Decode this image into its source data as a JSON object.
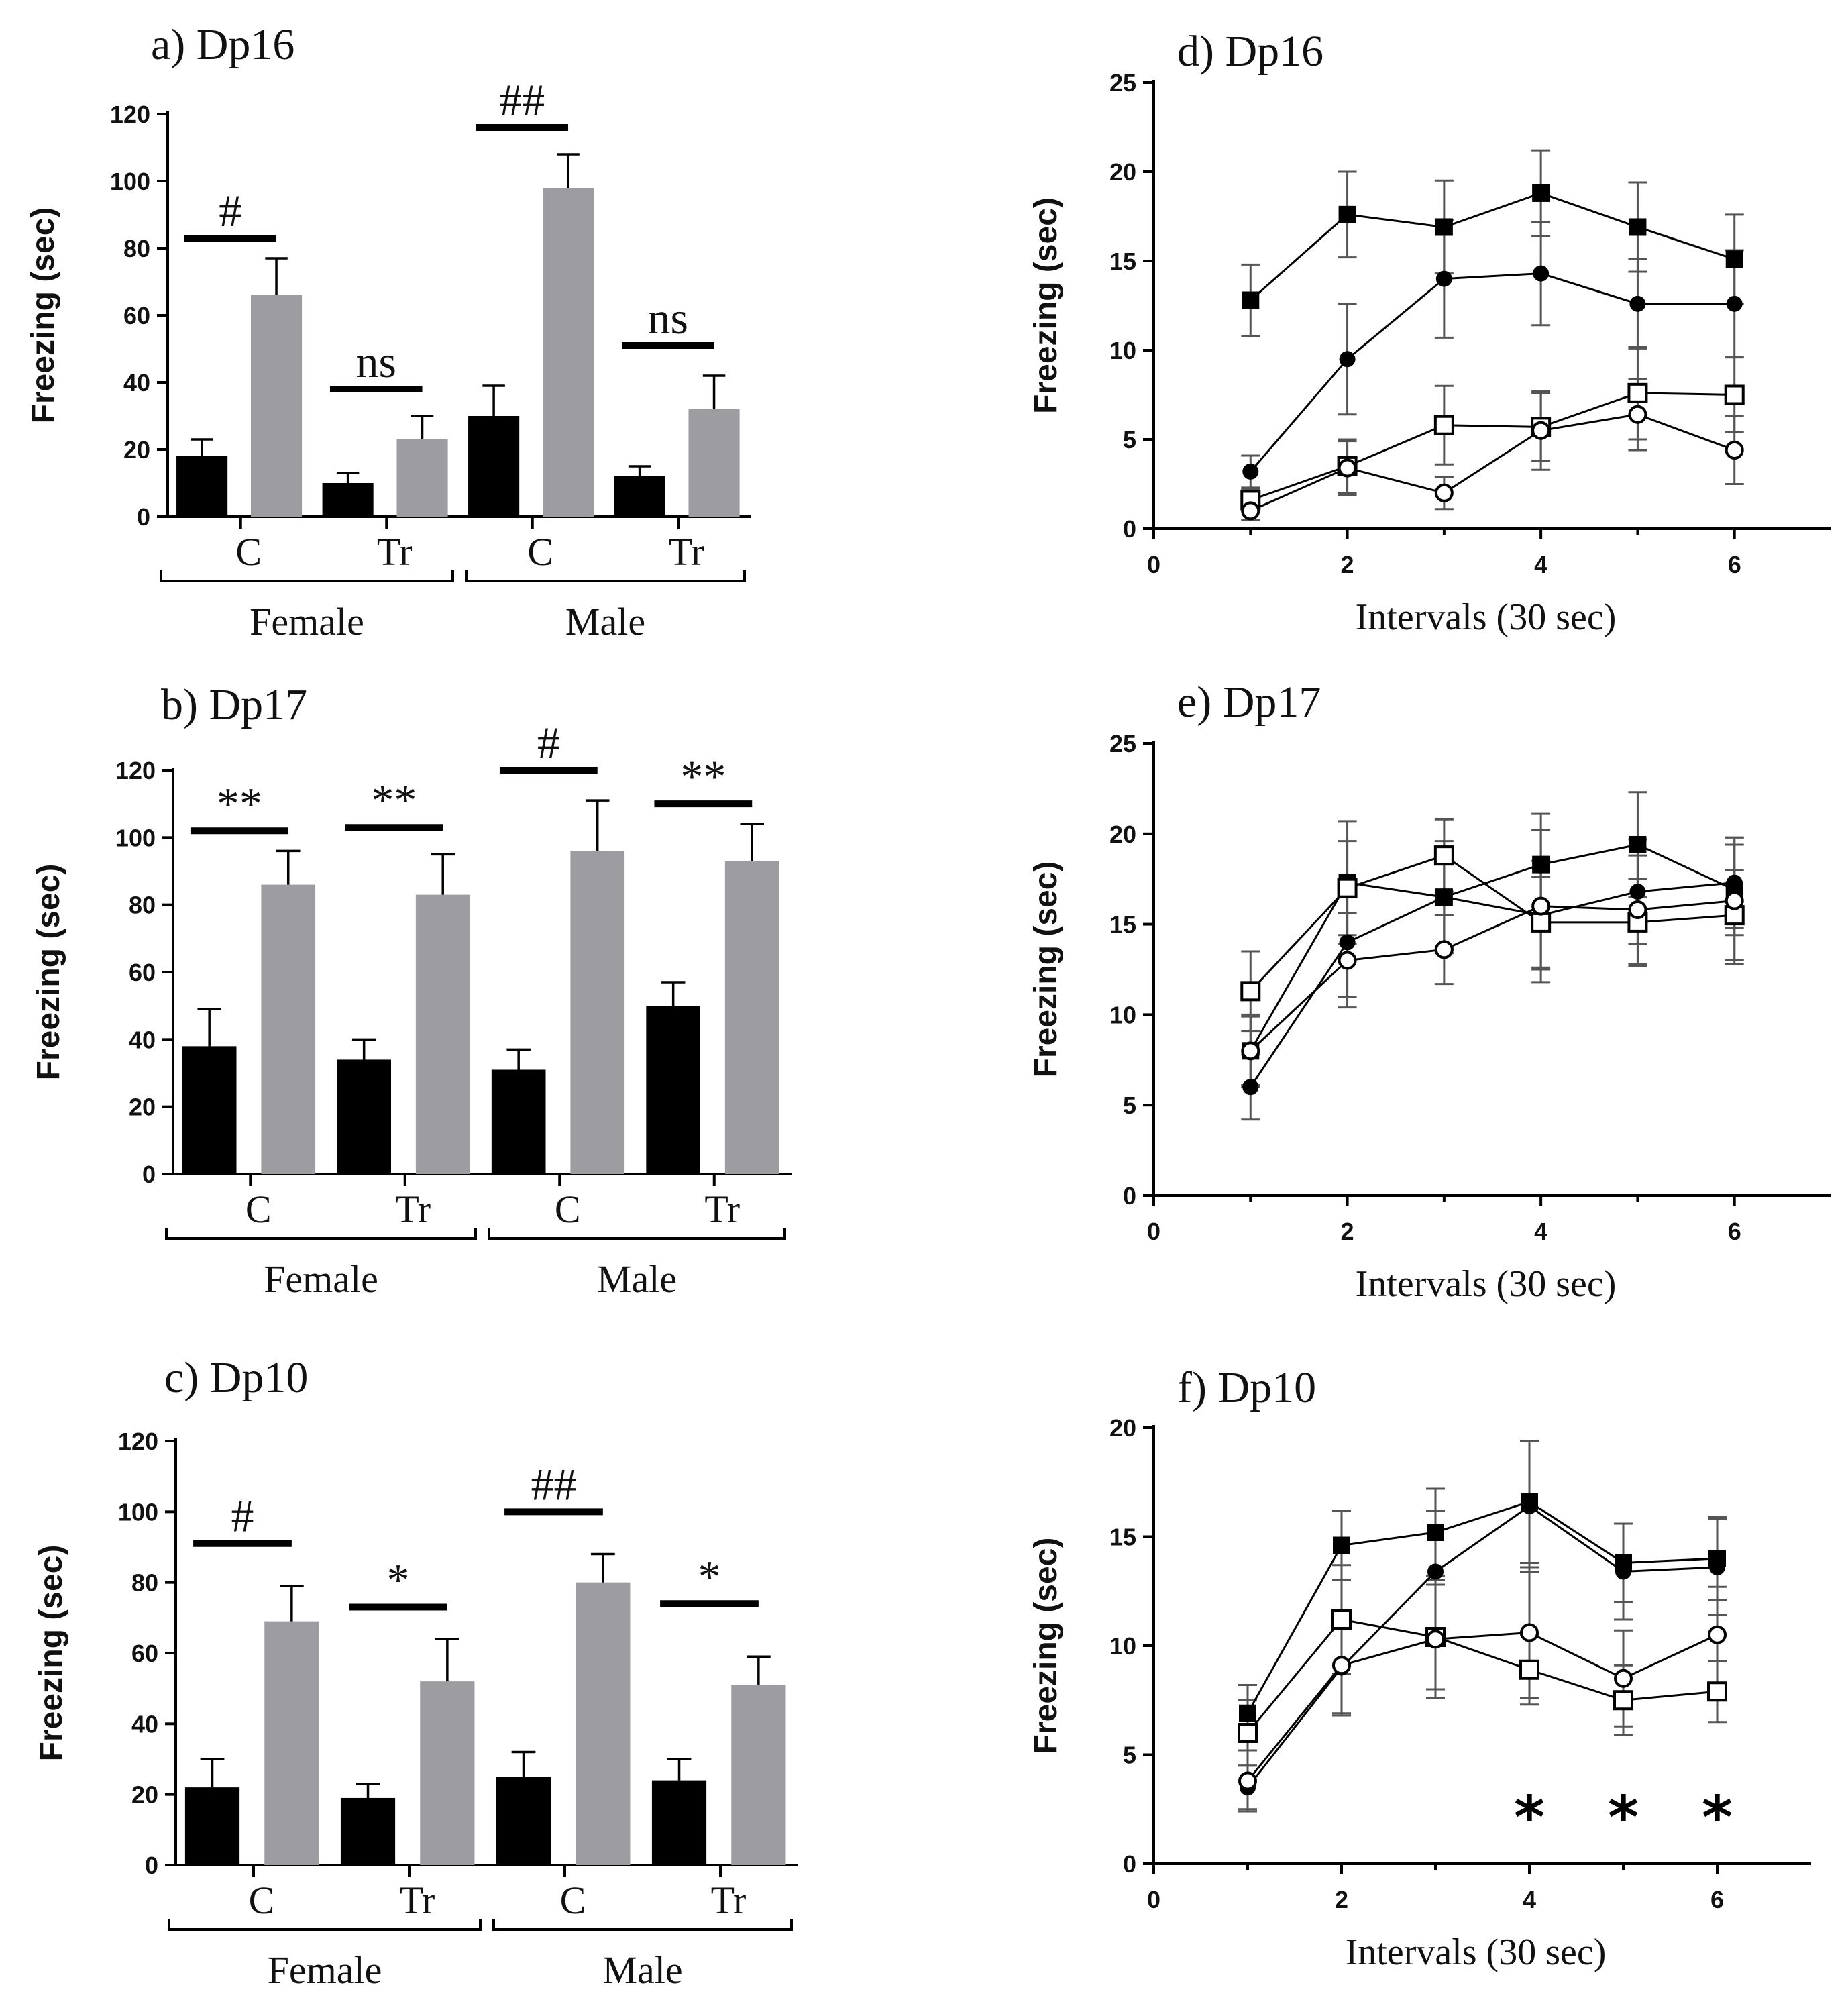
{
  "figure": {
    "colors": {
      "black": "#000000",
      "gray": "#9c9ca1"
    },
    "bar_groups": [
      "C",
      "Tr",
      "C",
      "Tr"
    ],
    "sexes": [
      "Female",
      "Male"
    ]
  },
  "chart_data": [
    {
      "id": "a",
      "type": "bar",
      "title": "a) Dp16",
      "ylabel": "Freezing (sec)",
      "ylim": [
        0,
        120
      ],
      "yticks": [
        0,
        20,
        40,
        60,
        80,
        100,
        120
      ],
      "categories": [
        "C",
        "Tr",
        "C",
        "Tr"
      ],
      "sex_labels": [
        "Female",
        "Male"
      ],
      "series": [
        {
          "name": "black",
          "values": [
            18,
            10,
            30,
            12
          ],
          "errors": [
            5,
            3,
            9,
            3
          ]
        },
        {
          "name": "gray",
          "values": [
            66,
            23,
            98,
            32
          ],
          "errors": [
            11,
            7,
            10,
            10
          ]
        }
      ],
      "annotations": [
        {
          "group": 0,
          "text": "#",
          "level": 83
        },
        {
          "group": 1,
          "text": "ns",
          "level": 38
        },
        {
          "group": 2,
          "text": "##",
          "level": 116
        },
        {
          "group": 3,
          "text": "ns",
          "level": 51
        }
      ]
    },
    {
      "id": "b",
      "type": "bar",
      "title": "b) Dp17",
      "ylabel": "Freezing (sec)",
      "ylim": [
        0,
        120
      ],
      "yticks": [
        0,
        20,
        40,
        60,
        80,
        100,
        120
      ],
      "categories": [
        "C",
        "Tr",
        "C",
        "Tr"
      ],
      "sex_labels": [
        "Female",
        "Male"
      ],
      "series": [
        {
          "name": "black",
          "values": [
            38,
            34,
            31,
            50
          ],
          "errors": [
            11,
            6,
            6,
            7
          ]
        },
        {
          "name": "gray",
          "values": [
            86,
            83,
            96,
            93
          ],
          "errors": [
            10,
            12,
            15,
            11
          ]
        }
      ],
      "annotations": [
        {
          "group": 0,
          "text": "**",
          "level": 102
        },
        {
          "group": 1,
          "text": "**",
          "level": 103
        },
        {
          "group": 2,
          "text": "#",
          "level": 120
        },
        {
          "group": 3,
          "text": "**",
          "level": 110
        }
      ]
    },
    {
      "id": "c",
      "type": "bar",
      "title": "c) Dp10",
      "ylabel": "Freezing (sec)",
      "ylim": [
        0,
        120
      ],
      "yticks": [
        0,
        20,
        40,
        60,
        80,
        100,
        120
      ],
      "categories": [
        "C",
        "Tr",
        "C",
        "Tr"
      ],
      "sex_labels": [
        "Female",
        "Male"
      ],
      "series": [
        {
          "name": "black",
          "values": [
            22,
            19,
            25,
            24
          ],
          "errors": [
            8,
            4,
            7,
            6
          ]
        },
        {
          "name": "gray",
          "values": [
            69,
            52,
            80,
            51
          ],
          "errors": [
            10,
            12,
            8,
            8
          ]
        }
      ],
      "annotations": [
        {
          "group": 0,
          "text": "#",
          "level": 91
        },
        {
          "group": 1,
          "text": "*",
          "level": 73
        },
        {
          "group": 2,
          "text": "##",
          "level": 100
        },
        {
          "group": 3,
          "text": "*",
          "level": 74
        }
      ]
    },
    {
      "id": "d",
      "type": "line",
      "title": "d) Dp16",
      "ylabel": "Freezing (sec)",
      "xlabel": "Intervals (30 sec)",
      "xlim": [
        0,
        7
      ],
      "xticks": [
        0,
        2,
        4,
        6
      ],
      "ylim": [
        0,
        25
      ],
      "yticks": [
        0,
        5,
        10,
        15,
        20,
        25
      ],
      "x": [
        1,
        2,
        3,
        4,
        5,
        6
      ],
      "series": [
        {
          "marker": "filled-square",
          "values": [
            12.8,
            17.6,
            16.9,
            18.8,
            16.9,
            15.1
          ],
          "errors": [
            2.0,
            2.4,
            2.6,
            2.4,
            2.5,
            2.5
          ]
        },
        {
          "marker": "filled-circle",
          "values": [
            3.2,
            9.5,
            14.0,
            14.3,
            12.6,
            12.6
          ],
          "errors": [
            0.9,
            3.1,
            3.3,
            2.9,
            2.5,
            3.0
          ]
        },
        {
          "marker": "open-square",
          "values": [
            1.6,
            3.5,
            5.8,
            5.7,
            7.6,
            7.5
          ],
          "errors": [
            0.6,
            1.5,
            2.2,
            1.9,
            2.6,
            2.1
          ]
        },
        {
          "marker": "open-circle",
          "values": [
            1.0,
            3.4,
            2.0,
            5.5,
            6.4,
            4.4
          ],
          "errors": [
            0.5,
            1.5,
            0.9,
            2.2,
            2.0,
            1.9
          ]
        }
      ],
      "annotations": []
    },
    {
      "id": "e",
      "type": "line",
      "title": "e) Dp17",
      "ylabel": "Freezing (sec)",
      "xlabel": "Intervals (30 sec)",
      "xlim": [
        0,
        7
      ],
      "xticks": [
        0,
        2,
        4,
        6
      ],
      "ylim": [
        0,
        25
      ],
      "yticks": [
        0,
        5,
        10,
        15,
        20,
        25
      ],
      "x": [
        1,
        2,
        3,
        4,
        5,
        6
      ],
      "series": [
        {
          "marker": "filled-square",
          "values": [
            8.0,
            17.3,
            16.5,
            18.3,
            19.4,
            16.9
          ],
          "errors": [
            2.0,
            3.4,
            3.1,
            2.8,
            2.9,
            2.5
          ]
        },
        {
          "marker": "filled-circle",
          "values": [
            6.0,
            14.0,
            16.5,
            15.5,
            16.8,
            17.3
          ],
          "errors": [
            1.8,
            3.0,
            2.8,
            3.0,
            2.9,
            2.5
          ]
        },
        {
          "marker": "open-square",
          "values": [
            11.3,
            17.0,
            18.8,
            15.1,
            15.1,
            15.5
          ],
          "errors": [
            2.2,
            2.6,
            2.0,
            2.5,
            2.4,
            2.5
          ]
        },
        {
          "marker": "open-circle",
          "values": [
            8.0,
            13.0,
            13.6,
            16.0,
            15.8,
            16.3
          ],
          "errors": [
            1.9,
            2.6,
            1.9,
            4.2,
            3.0,
            3.5
          ]
        }
      ],
      "annotations": []
    },
    {
      "id": "f",
      "type": "line",
      "title": "f) Dp10",
      "ylabel": "Freezing (sec)",
      "xlabel": "Intervals (30 sec)",
      "xlim": [
        0,
        7
      ],
      "xticks": [
        0,
        2,
        4,
        6
      ],
      "ylim": [
        0,
        20
      ],
      "yticks": [
        0,
        5,
        10,
        15,
        20
      ],
      "x": [
        1,
        2,
        3,
        4,
        5,
        6
      ],
      "series": [
        {
          "marker": "filled-square",
          "values": [
            6.9,
            14.6,
            15.2,
            16.6,
            13.8,
            14.0
          ],
          "errors": [
            1.3,
            1.6,
            2.0,
            2.8,
            1.8,
            1.9
          ]
        },
        {
          "marker": "filled-circle",
          "values": [
            3.5,
            9.0,
            13.4,
            16.4,
            13.4,
            13.6
          ],
          "errors": [
            1.0,
            2.2,
            2.8,
            3.0,
            2.2,
            2.2
          ]
        },
        {
          "marker": "open-square",
          "values": [
            6.0,
            11.2,
            10.4,
            8.9,
            7.5,
            7.9
          ],
          "errors": [
            1.5,
            2.5,
            2.4,
            1.6,
            1.6,
            1.4
          ]
        },
        {
          "marker": "open-circle",
          "values": [
            3.8,
            9.1,
            10.3,
            10.6,
            8.5,
            10.5
          ],
          "errors": [
            1.4,
            2.2,
            2.7,
            3.0,
            2.2,
            2.2
          ]
        }
      ],
      "annotations": [
        {
          "x": 4,
          "text": "*"
        },
        {
          "x": 5,
          "text": "*"
        },
        {
          "x": 6,
          "text": "*"
        }
      ]
    }
  ]
}
